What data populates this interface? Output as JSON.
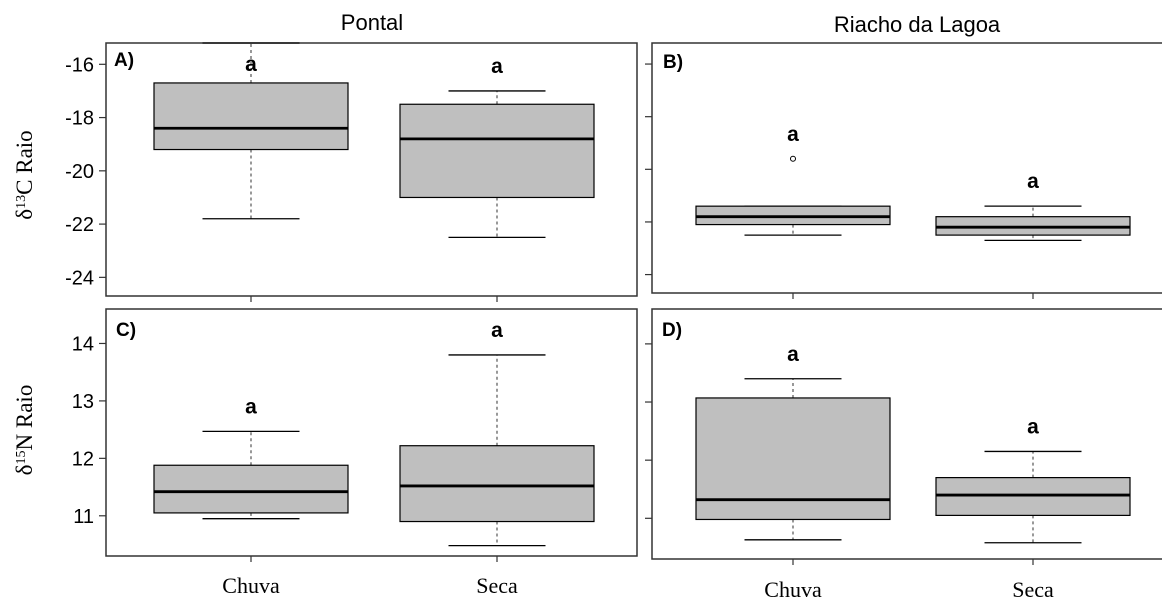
{
  "chart_data": [
    {
      "type": "boxplot",
      "panel_label": "A)",
      "column_title": "Pontal",
      "ylabel": "δ13C Raio",
      "ylim": [
        -24.7,
        -15.2
      ],
      "yticks": [
        "-24",
        "-22",
        "-20",
        "-18",
        "-16"
      ],
      "categories": [
        "Chuva",
        "Seca"
      ],
      "boxes": [
        {
          "whisker_low": -21.8,
          "q1": -19.2,
          "median": -18.4,
          "q3": -16.7,
          "whisker_high": -15.2,
          "outliers": [],
          "letter": "a"
        },
        {
          "whisker_low": -22.5,
          "q1": -21.0,
          "median": -18.8,
          "q3": -17.5,
          "whisker_high": -17.0,
          "outliers": [],
          "letter": "a"
        }
      ]
    },
    {
      "type": "boxplot",
      "panel_label": "B)",
      "column_title": "Riacho da Lagoa",
      "ylim": [
        -24.7,
        -15.2
      ],
      "yticks": [
        "-24",
        "-22",
        "-20",
        "-18",
        "-16"
      ],
      "categories": [
        "Chuva",
        "Seca"
      ],
      "boxes": [
        {
          "whisker_low": -22.5,
          "q1": -22.1,
          "median": -21.8,
          "q3": -21.4,
          "whisker_high": -21.4,
          "outliers": [
            -19.6
          ],
          "letter": "a"
        },
        {
          "whisker_low": -22.7,
          "q1": -22.5,
          "median": -22.2,
          "q3": -21.8,
          "whisker_high": -21.4,
          "outliers": [],
          "letter": "a"
        }
      ]
    },
    {
      "type": "boxplot",
      "panel_label": "C)",
      "ylabel": "δ15N Raio",
      "ylim": [
        10.3,
        14.6
      ],
      "yticks": [
        "11",
        "12",
        "13",
        "14"
      ],
      "categories": [
        "Chuva",
        "Seca"
      ],
      "boxes": [
        {
          "whisker_low": 10.95,
          "q1": 11.05,
          "median": 11.42,
          "q3": 11.88,
          "whisker_high": 12.47,
          "outliers": [],
          "letter": "a"
        },
        {
          "whisker_low": 10.48,
          "q1": 10.9,
          "median": 11.52,
          "q3": 12.22,
          "whisker_high": 13.8,
          "outliers": [],
          "letter": "a"
        }
      ]
    },
    {
      "type": "boxplot",
      "panel_label": "D)",
      "ylim": [
        10.3,
        14.6
      ],
      "yticks": [
        "11",
        "12",
        "13",
        "14"
      ],
      "categories": [
        "Chuva",
        "Seca"
      ],
      "boxes": [
        {
          "whisker_low": 10.63,
          "q1": 10.98,
          "median": 11.32,
          "q3": 13.07,
          "whisker_high": 13.4,
          "outliers": [],
          "letter": "a"
        },
        {
          "whisker_low": 10.58,
          "q1": 11.05,
          "median": 11.4,
          "q3": 11.7,
          "whisker_high": 12.15,
          "outliers": [],
          "letter": "a"
        }
      ]
    }
  ],
  "colors": {
    "box_fill": "#bfbfbf",
    "line": "#000000",
    "frame": "#333333",
    "whisker": "#555555"
  }
}
